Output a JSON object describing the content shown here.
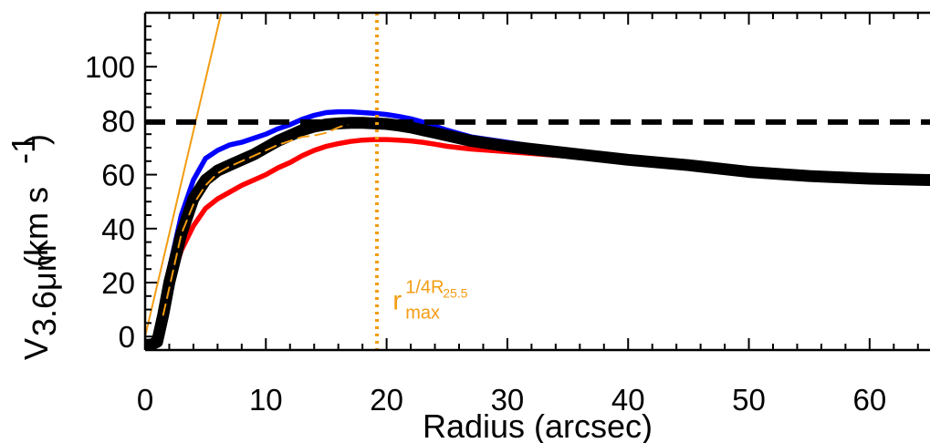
{
  "chart_data": {
    "type": "line",
    "xlabel": "Radius (arcsec)",
    "ylabel": {
      "main": "V",
      "sub": "3.6μm",
      "units_open": " (km s",
      "units_sup": "-1",
      "units_close": ")"
    },
    "xlim": [
      0,
      65
    ],
    "ylim": [
      -5,
      120
    ],
    "x_ticks": [
      0,
      10,
      20,
      30,
      40,
      50,
      60
    ],
    "x_tick_labels": [
      "0",
      "10",
      "20",
      "30",
      "40",
      "50",
      "60"
    ],
    "y_ticks": [
      0,
      20,
      40,
      60,
      80,
      100
    ],
    "y_tick_labels": [
      "0",
      "20",
      "40",
      "60",
      "80",
      "100"
    ],
    "grid": false,
    "series": [
      {
        "color": "#0000ff",
        "x": [
          0,
          0.5,
          1,
          1.5,
          2,
          3,
          4,
          5,
          6,
          7,
          8,
          9,
          10,
          11,
          12,
          13,
          14,
          15,
          16,
          17,
          18,
          19,
          20,
          21,
          22,
          23,
          24,
          25,
          27,
          30,
          33,
          36,
          40,
          45,
          50,
          55,
          60,
          65
        ],
        "y": [
          -3,
          -3,
          -2,
          10,
          25,
          45,
          58,
          66,
          69,
          71,
          72,
          73.5,
          75,
          77,
          78.5,
          80.5,
          82,
          83,
          83.3,
          83.3,
          83,
          82.7,
          82.3,
          81.6,
          80.7,
          79.5,
          78,
          76.5,
          74,
          72,
          70,
          68.5,
          66.5,
          64.5,
          62,
          60.5,
          59.5,
          59
        ]
      },
      {
        "color": "#000000",
        "x": [
          0,
          0.5,
          1,
          1.5,
          2,
          3,
          4,
          5,
          6,
          7,
          8,
          9,
          10,
          11,
          12,
          13,
          14,
          15,
          16,
          17,
          18,
          19,
          20,
          21,
          22,
          23,
          24,
          25,
          27,
          30,
          33,
          36,
          40,
          45,
          50,
          55,
          60,
          65
        ],
        "y": [
          -3,
          -3,
          -2,
          8,
          20,
          38,
          51,
          58,
          61.5,
          63.5,
          65.5,
          67.5,
          70,
          72.5,
          74.5,
          76.5,
          77.8,
          78.6,
          79,
          79.2,
          79.2,
          79,
          78.8,
          78.2,
          77.5,
          76.5,
          75.5,
          74.5,
          72.5,
          70.5,
          69,
          67.5,
          65.5,
          63.5,
          61,
          59.5,
          58.5,
          58
        ]
      },
      {
        "color": "#ff0000",
        "x": [
          0,
          0.5,
          1,
          1.5,
          2,
          3,
          4,
          5,
          6,
          7,
          8,
          9,
          10,
          11,
          12,
          13,
          14,
          15,
          16,
          17,
          18,
          19,
          20,
          21,
          22,
          23,
          24,
          25,
          27,
          30,
          33,
          36,
          40,
          45,
          50,
          55,
          60,
          65
        ],
        "y": [
          -3,
          -3,
          -2,
          8,
          18,
          32,
          41,
          47.5,
          51,
          53.5,
          56,
          58,
          60,
          62.5,
          64.5,
          67,
          69,
          70.5,
          71.5,
          72.3,
          72.8,
          73,
          73,
          72.8,
          72.5,
          72,
          71.3,
          70.5,
          69.5,
          68.5,
          67.5,
          66.5,
          65,
          63,
          60.5,
          59,
          58,
          57
        ]
      },
      {
        "color": "#f39c12",
        "dash": "dashed",
        "x": [
          1.5,
          2,
          3,
          4,
          5,
          6,
          7,
          8,
          9,
          10,
          11,
          12,
          13,
          14,
          15,
          16,
          17
        ],
        "y": [
          8,
          18,
          38,
          49,
          56,
          60.5,
          63,
          65,
          67,
          69,
          71,
          72.5,
          74,
          74.5,
          75.5,
          77.5,
          79
        ]
      },
      {
        "color": "#f39c12",
        "x": [
          0,
          6.3
        ],
        "y": [
          0,
          120
        ]
      }
    ],
    "hlines": [
      {
        "y": 79.5,
        "color": "#000000",
        "style": "dashed"
      }
    ],
    "vlines": [
      {
        "x": 19.2,
        "color": "#f39c12",
        "style": "dotted"
      }
    ],
    "annotations": [
      {
        "base": "r",
        "sup": "1/4R",
        "sup_sub": "25.5",
        "sub": "max",
        "color": "#f39c12",
        "x": 20.5,
        "y": 10
      }
    ]
  }
}
